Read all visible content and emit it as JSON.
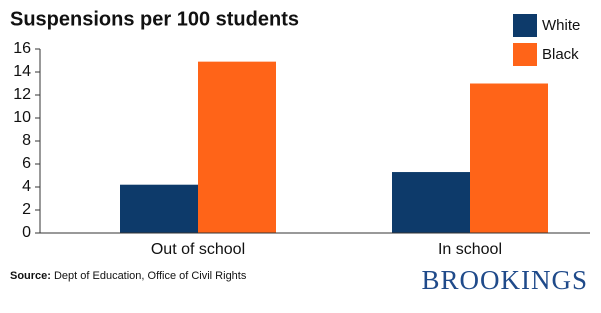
{
  "chart_data": {
    "type": "bar",
    "title": "Suspensions per 100 students",
    "categories": [
      "Out of school",
      "In school"
    ],
    "series": [
      {
        "name": "White",
        "color": "#0d3a6a",
        "values": [
          4.2,
          5.3
        ]
      },
      {
        "name": "Black",
        "color": "#ff6418",
        "values": [
          14.9,
          13.0
        ]
      }
    ],
    "ylim": [
      0,
      16
    ],
    "yticks": [
      0,
      2,
      4,
      6,
      8,
      10,
      12,
      14,
      16
    ],
    "grid": false,
    "legend": "top-right",
    "source_label": "Source:",
    "source": "Dept of Education, Office of Civil Rights",
    "logo": "BROOKINGS"
  }
}
